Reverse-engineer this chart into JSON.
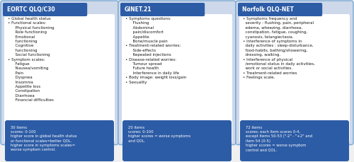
{
  "panels": [
    {
      "title": "EORTC QLQ/C30",
      "title_bg": "#2d5ca6",
      "title_color": "#ffffff",
      "body_text": "• Global health status\n• Functional scales:\n      Physical functioning\n      Role functioning\n      Emotional\n      functioning\n      Cognitive\n      functioning\n      Social functioning\n• Symptom scales:\n      Fatigue\n      Nausea/vomiting\n      Pain\n      Dyspnea\n      Insomnia\n      Appetite loss\n      Constipation\n      Diarrhoea\n      Financial difficulties",
      "footer_text": "30 items\nscores: 0-100\nhigher score in global health status\nor functional scales=better QOL.\nhigher score in symptoms scales=\nworse symptom control.",
      "footer_bg": "#2d5ca6",
      "footer_color": "#ffffff",
      "outer_border": "#7baad4",
      "body_bg": "#ffffff"
    },
    {
      "title": "GINET.21",
      "title_bg": "#2d5ca6",
      "title_color": "#ffffff",
      "body_text": "• Symptoms questions:\n      Flushing\n      Abdominal\n      pain/discomfort\n      Appetite\n      Bone/muscle pain\n• Treatment-related worries:\n      Side-effects\n      Repeated injections\n• Disease-related worries:\n      Tumour spread\n      Future health\n      Interference in daily life\n• Body image: weight loss/gain\n• Sexuality",
      "footer_text": "20 items\nscores: 0-100\nhigher scores = worse symptoms\nand QOL.",
      "footer_bg": "#2d5ca6",
      "footer_color": "#ffffff",
      "outer_border": "#7baad4",
      "body_bg": "#ffffff"
    },
    {
      "title": "Norfolk QLQ-NET",
      "title_bg": "#2d5ca6",
      "title_color": "#ffffff",
      "body_text": "• Symptoms frequency and\n  severity : flushing, pain, peripheral\n  edema, wheezing, diarrhoea,\n  constipation, fatigue, coughing,\n  cyanosis, telangiectasia.\n• Interference of symptoms in\n  daily activities : sleep-disturbance,\n  food-habits, bathing/showering,\n  dressing, walking.\n• Interference of physical\n  /emotional status in daily activities,\n  work or social activities.\n• Treatment-related worries\n• Feelings scale.",
      "footer_text": "72 items\nscores: each item scores 0-4,\nexcept items 50-53 (\"-2\" - \"+2\" and\nitem 54 (0-5)\nhigher scores = worse symptom\ncontrol and QOL.",
      "footer_bg": "#2d5ca6",
      "footer_color": "#ffffff",
      "outer_border": "#7baad4",
      "body_bg": "#ffffff"
    }
  ],
  "fig_bg": "#f0f0f0",
  "panel_outer_bg": "#cdd8ea"
}
